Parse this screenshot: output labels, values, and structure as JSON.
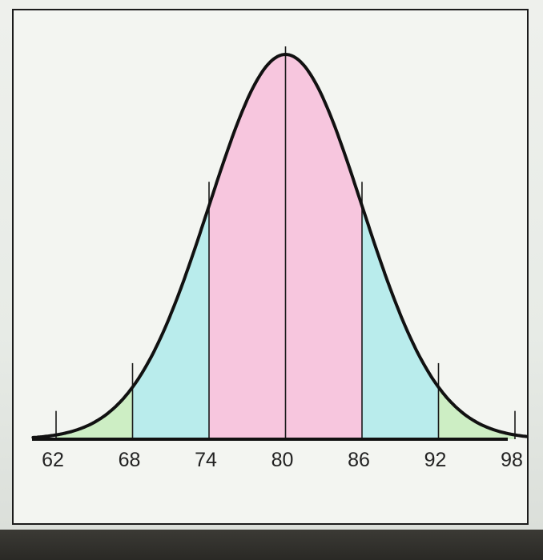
{
  "chart_data": {
    "type": "area",
    "x_ticks": [
      62,
      68,
      74,
      80,
      86,
      92,
      98
    ],
    "tick_labels": [
      "62",
      "68",
      "74",
      "80",
      "86",
      "92",
      "98"
    ],
    "mean": 80,
    "sd": 6,
    "xlim": [
      60.2,
      98.9
    ],
    "regions": [
      {
        "from": 62,
        "to": 68,
        "color": "#cdeec4"
      },
      {
        "from": 68,
        "to": 74,
        "color": "#b9ecec"
      },
      {
        "from": 74,
        "to": 86,
        "color": "#f7c6de"
      },
      {
        "from": 86,
        "to": 92,
        "color": "#b9ecec"
      },
      {
        "from": 92,
        "to": 98,
        "color": "#cdeec4"
      }
    ],
    "curve_color": "#111111",
    "title": "",
    "xlabel": "",
    "ylabel": ""
  }
}
